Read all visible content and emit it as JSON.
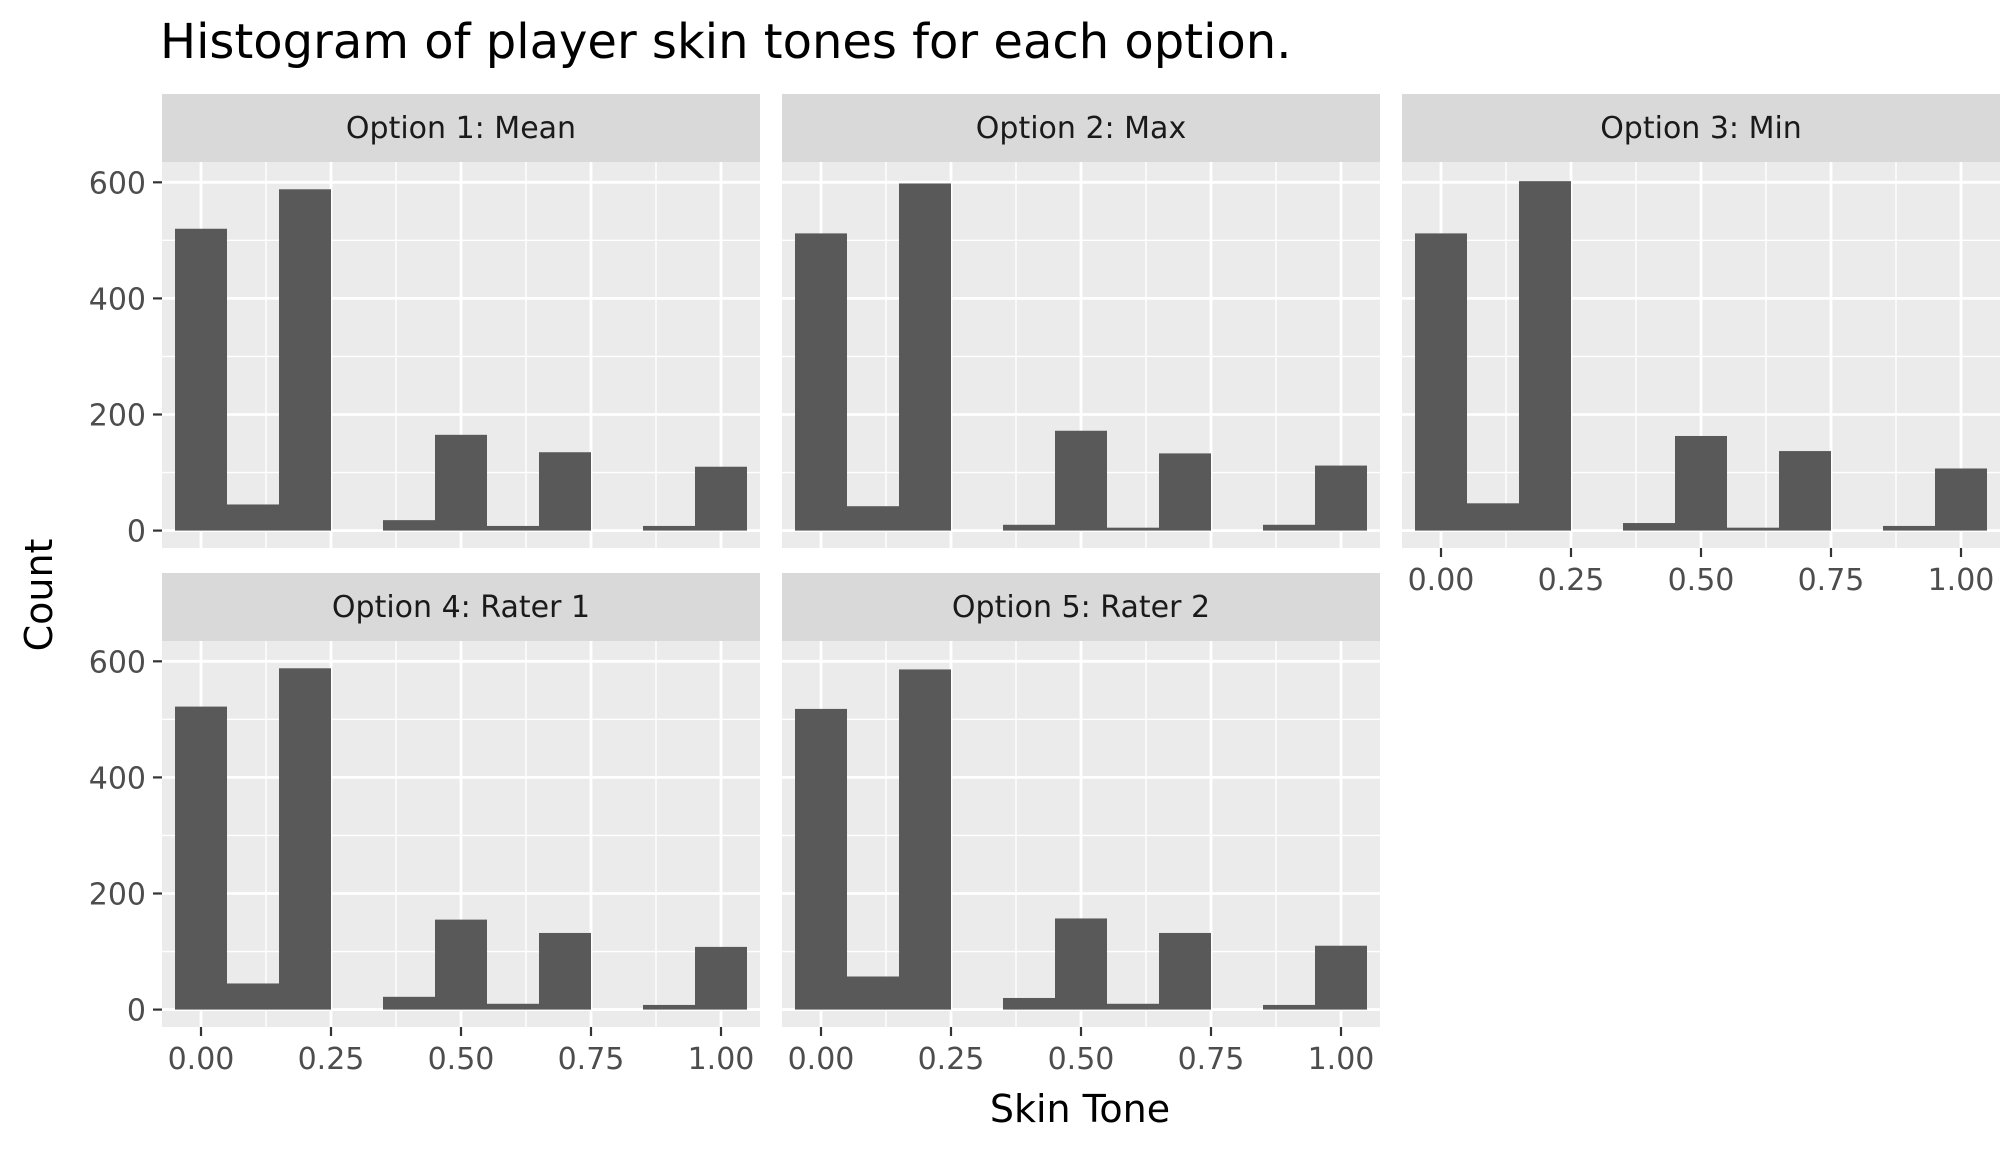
{
  "chart_data": {
    "type": "bar",
    "title": "Histogram of player skin tones for each option.",
    "xlabel": "Skin Tone",
    "ylabel": "Count",
    "xlim": [
      -0.075,
      1.075
    ],
    "ylim": [
      -30,
      635
    ],
    "x_ticks": [
      0,
      0.25,
      0.5,
      0.75,
      1
    ],
    "x_tick_labels": [
      "0.00",
      "0.25",
      "0.50",
      "0.75",
      "1.00"
    ],
    "y_ticks": [
      0,
      200,
      400,
      600
    ],
    "y_tick_labels": [
      "0",
      "200",
      "400",
      "600"
    ],
    "bin_width": 0.1,
    "bin_centers": [
      0,
      0.1,
      0.2,
      0.3,
      0.4,
      0.5,
      0.6,
      0.7,
      0.8,
      0.9,
      1.0
    ],
    "grid": true,
    "facets": [
      {
        "label": "Option 1: Mean",
        "values": [
          520,
          45,
          588,
          0,
          18,
          165,
          8,
          135,
          0,
          8,
          110
        ]
      },
      {
        "label": "Option 2: Max",
        "values": [
          512,
          42,
          598,
          0,
          10,
          172,
          5,
          133,
          0,
          10,
          112
        ]
      },
      {
        "label": "Option 3: Min",
        "values": [
          512,
          47,
          602,
          0,
          13,
          163,
          5,
          137,
          0,
          8,
          107
        ]
      },
      {
        "label": "Option 4: Rater 1",
        "values": [
          522,
          45,
          588,
          0,
          22,
          155,
          10,
          132,
          0,
          8,
          108
        ]
      },
      {
        "label": "Option 5: Rater 2",
        "values": [
          518,
          57,
          586,
          0,
          20,
          157,
          10,
          132,
          0,
          8,
          110
        ]
      }
    ],
    "bar_color": "#595959",
    "panel_background": "#ebebeb",
    "strip_background": "#d9d9d9",
    "grid_color": "#ffffff"
  }
}
